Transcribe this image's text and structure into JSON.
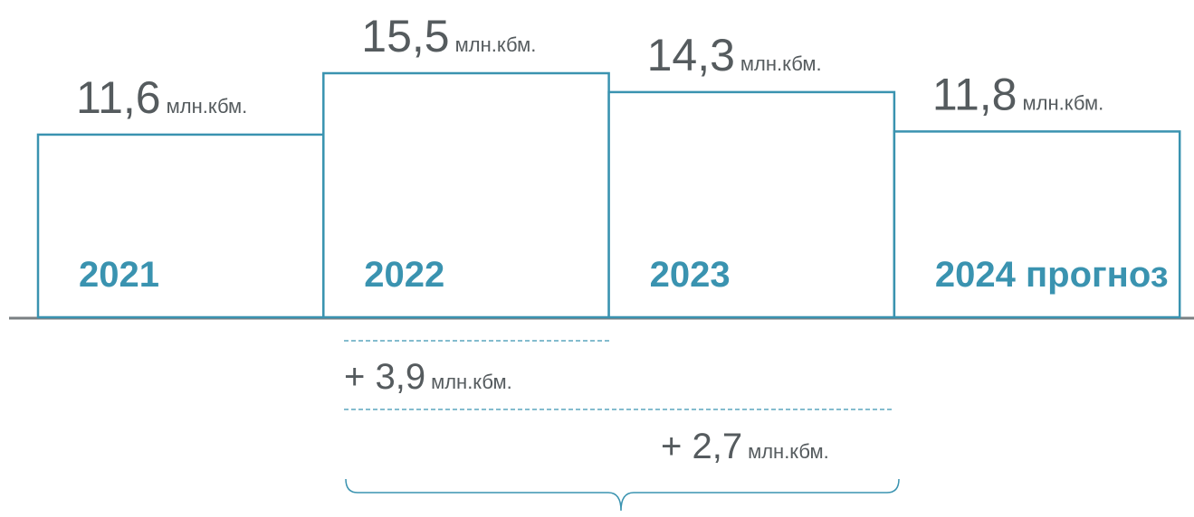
{
  "chart_data": {
    "type": "bar",
    "categories": [
      "2021",
      "2022",
      "2023",
      "2024 прогноз"
    ],
    "values": [
      11.6,
      15.5,
      14.3,
      11.8
    ],
    "value_labels": [
      "11,6",
      "15,5",
      "14,3",
      "11,8"
    ],
    "unit": "млн.кбм.",
    "color": "#3a93b0",
    "annotations": [
      {
        "value": 3.9,
        "label": "+ 3,9"
      },
      {
        "value": 2.7,
        "label": "+ 2,7"
      }
    ]
  }
}
